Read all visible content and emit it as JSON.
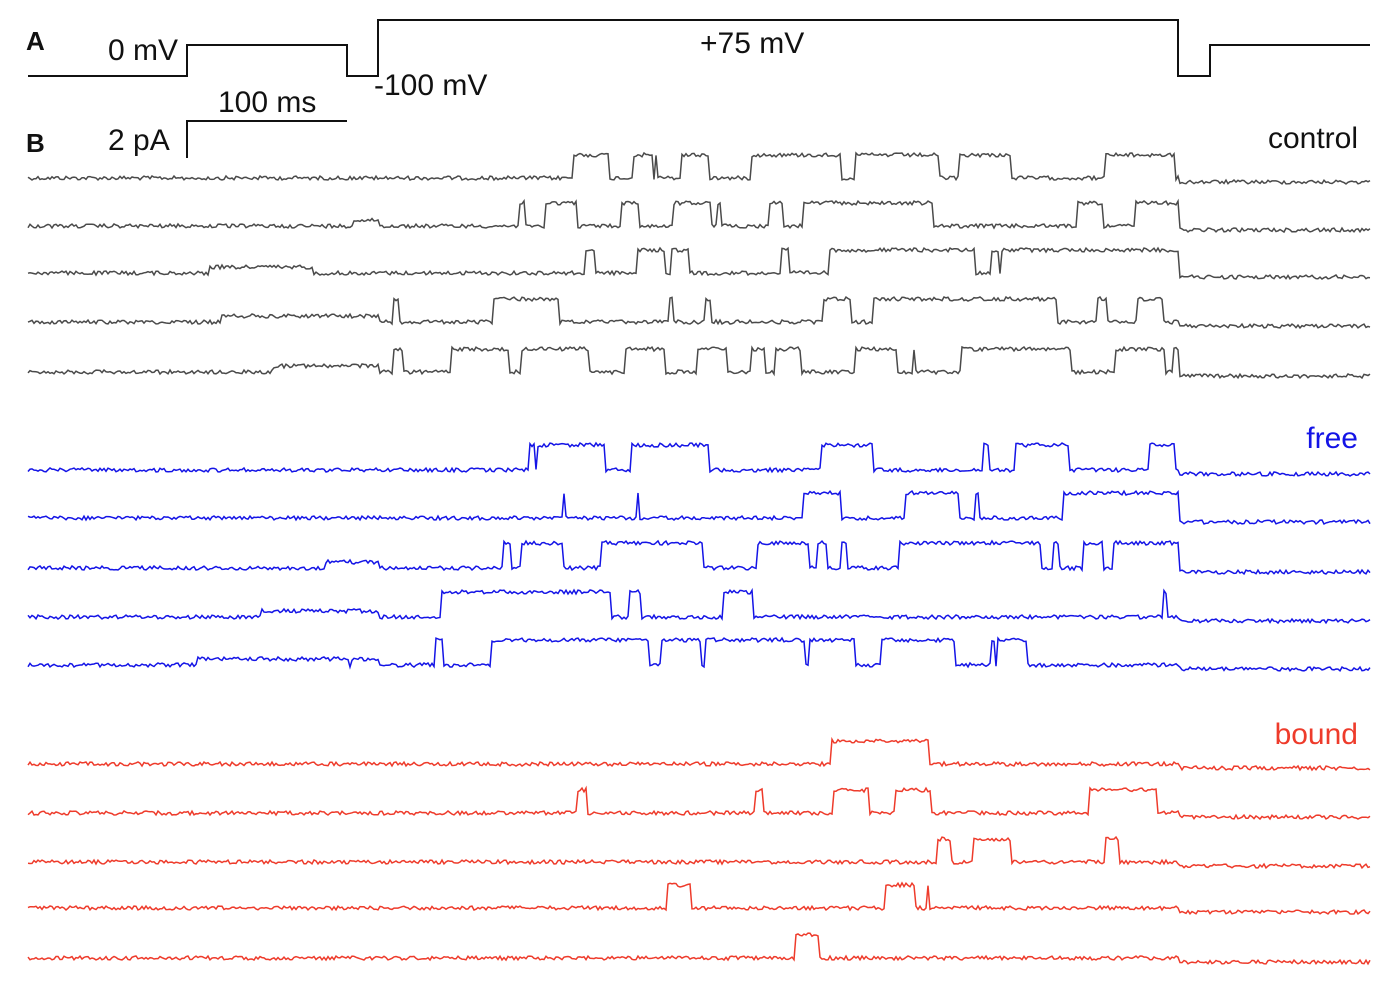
{
  "figure": {
    "panel_a": {
      "letter": "A",
      "label_hold": "0 mV",
      "label_neg": "-100 mV",
      "label_pos": "+75 mV"
    },
    "panel_b": {
      "letter": "B",
      "scale_time": "100 ms",
      "scale_current": "2 pA"
    },
    "conditions": [
      {
        "id": "control",
        "label": "control",
        "color": "#4a4a4a",
        "traces": 5
      },
      {
        "id": "free",
        "label": "free",
        "color": "#1414e6",
        "traces": 5
      },
      {
        "id": "bound",
        "label": "bound",
        "color": "#ee3b2b",
        "traces": 5
      }
    ]
  }
}
